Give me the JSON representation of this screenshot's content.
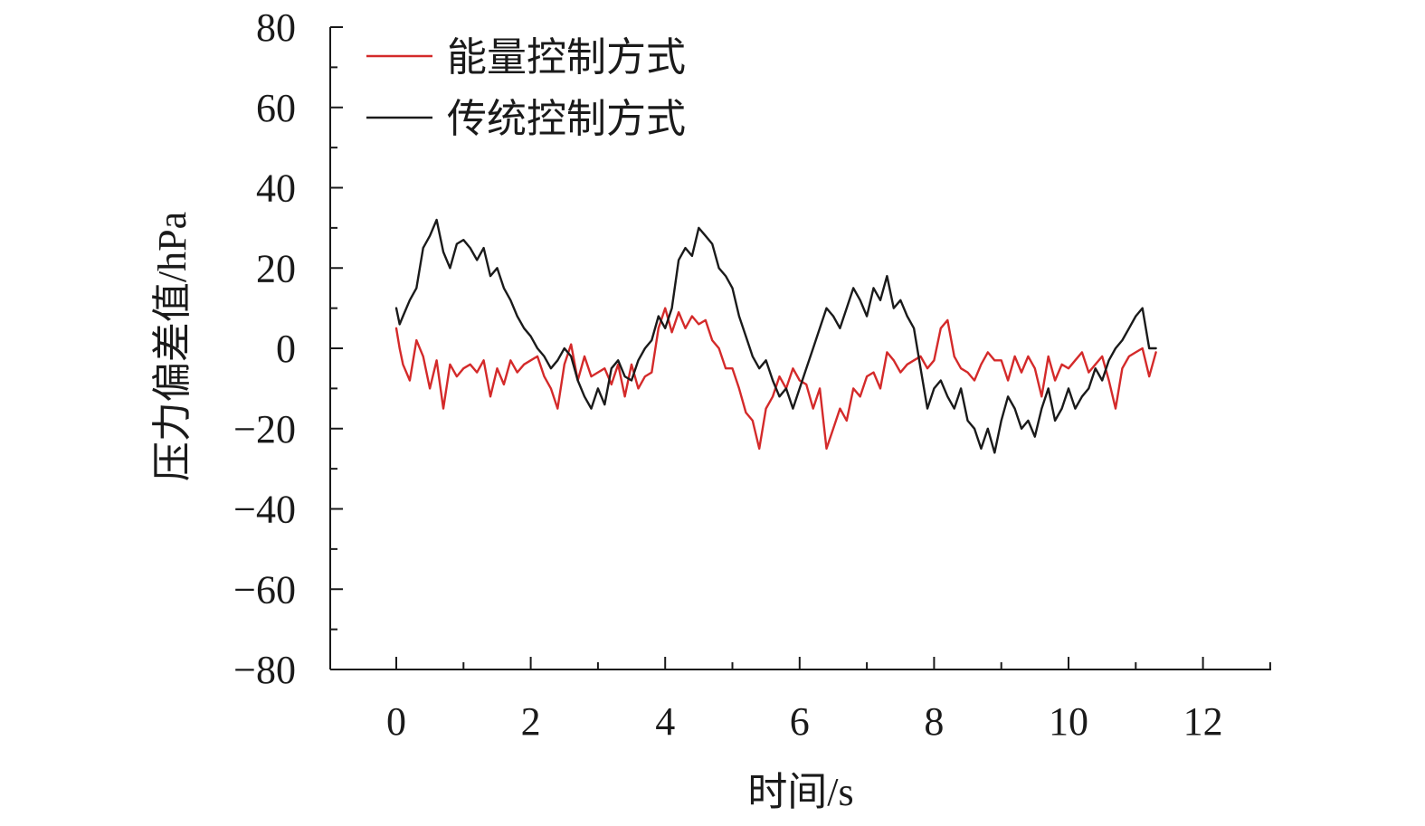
{
  "chart_data": {
    "type": "line",
    "title": "",
    "xlabel": "时间/s",
    "ylabel": "压力偏差值/hPa",
    "xlim": [
      0,
      13
    ],
    "ylim": [
      -80,
      80
    ],
    "x_ticks": [
      0,
      2,
      4,
      6,
      8,
      10,
      12
    ],
    "y_ticks": [
      80,
      60,
      40,
      20,
      0,
      -20,
      -40,
      -60,
      -80
    ],
    "x_tick_labels": [
      "0",
      "2",
      "4",
      "6",
      "8",
      "10",
      "12"
    ],
    "y_tick_labels": [
      "80",
      "60",
      "40",
      "20",
      "0",
      "−20",
      "−40",
      "−60",
      "−80"
    ],
    "grid": false,
    "legend_position": "top-left",
    "series": [
      {
        "name": "能量控制方式",
        "color": "#d42a2a",
        "x": [
          0,
          0.05,
          0.1,
          0.2,
          0.3,
          0.4,
          0.5,
          0.6,
          0.7,
          0.8,
          0.9,
          1.0,
          1.1,
          1.2,
          1.3,
          1.4,
          1.5,
          1.6,
          1.7,
          1.8,
          1.9,
          2.0,
          2.1,
          2.2,
          2.3,
          2.4,
          2.5,
          2.6,
          2.7,
          2.8,
          2.9,
          3.0,
          3.1,
          3.2,
          3.3,
          3.4,
          3.5,
          3.6,
          3.7,
          3.8,
          3.9,
          4.0,
          4.1,
          4.2,
          4.3,
          4.4,
          4.5,
          4.6,
          4.7,
          4.8,
          4.9,
          5.0,
          5.1,
          5.2,
          5.3,
          5.4,
          5.5,
          5.6,
          5.7,
          5.8,
          5.9,
          6.0,
          6.1,
          6.2,
          6.3,
          6.4,
          6.5,
          6.6,
          6.7,
          6.8,
          6.9,
          7.0,
          7.1,
          7.2,
          7.3,
          7.4,
          7.5,
          7.6,
          7.7,
          7.8,
          7.9,
          8.0,
          8.1,
          8.2,
          8.3,
          8.4,
          8.5,
          8.6,
          8.7,
          8.8,
          8.9,
          9.0,
          9.1,
          9.2,
          9.3,
          9.4,
          9.5,
          9.6,
          9.7,
          9.8,
          9.9,
          10.0,
          10.1,
          10.2,
          10.3,
          10.4,
          10.5,
          10.6,
          10.7,
          10.8,
          10.9,
          11.0,
          11.1,
          11.2,
          11.3
        ],
        "y": [
          5,
          0,
          -4,
          -8,
          2,
          -2,
          -10,
          -3,
          -15,
          -4,
          -7,
          -5,
          -4,
          -6,
          -3,
          -12,
          -5,
          -9,
          -3,
          -6,
          -4,
          -3,
          -2,
          -7,
          -10,
          -15,
          -4,
          1,
          -8,
          -2,
          -7,
          -6,
          -5,
          -9,
          -4,
          -12,
          -4,
          -10,
          -7,
          -6,
          5,
          10,
          4,
          9,
          5,
          8,
          6,
          7,
          2,
          0,
          -5,
          -5,
          -10,
          -16,
          -18,
          -25,
          -15,
          -12,
          -7,
          -10,
          -5,
          -8,
          -9,
          -15,
          -10,
          -25,
          -20,
          -15,
          -18,
          -10,
          -12,
          -7,
          -6,
          -10,
          -1,
          -3,
          -6,
          -4,
          -3,
          -2,
          -5,
          -3,
          5,
          7,
          -2,
          -5,
          -6,
          -8,
          -4,
          -1,
          -3,
          -3,
          -8,
          -2,
          -6,
          -2,
          -5,
          -12,
          -2,
          -8,
          -4,
          -5,
          -3,
          -1,
          -6,
          -4,
          -2,
          -8,
          -15,
          -5,
          -2,
          -1,
          0,
          -7,
          -1
        ]
      },
      {
        "name": "传统控制方式",
        "color": "#1a1a1a",
        "x": [
          0,
          0.05,
          0.1,
          0.2,
          0.3,
          0.4,
          0.5,
          0.6,
          0.7,
          0.8,
          0.9,
          1.0,
          1.1,
          1.2,
          1.3,
          1.4,
          1.5,
          1.6,
          1.7,
          1.8,
          1.9,
          2.0,
          2.1,
          2.2,
          2.3,
          2.4,
          2.5,
          2.6,
          2.7,
          2.8,
          2.9,
          3.0,
          3.1,
          3.2,
          3.3,
          3.4,
          3.5,
          3.6,
          3.7,
          3.8,
          3.9,
          4.0,
          4.1,
          4.2,
          4.3,
          4.4,
          4.5,
          4.6,
          4.7,
          4.8,
          4.9,
          5.0,
          5.1,
          5.2,
          5.3,
          5.4,
          5.5,
          5.6,
          5.7,
          5.8,
          5.9,
          6.0,
          6.1,
          6.2,
          6.3,
          6.4,
          6.5,
          6.6,
          6.7,
          6.8,
          6.9,
          7.0,
          7.1,
          7.2,
          7.3,
          7.4,
          7.5,
          7.6,
          7.7,
          7.8,
          7.9,
          8.0,
          8.1,
          8.2,
          8.3,
          8.4,
          8.5,
          8.6,
          8.7,
          8.8,
          8.9,
          9.0,
          9.1,
          9.2,
          9.3,
          9.4,
          9.5,
          9.6,
          9.7,
          9.8,
          9.9,
          10.0,
          10.1,
          10.2,
          10.3,
          10.4,
          10.5,
          10.6,
          10.7,
          10.8,
          10.9,
          11.0,
          11.1,
          11.2,
          11.3
        ],
        "y": [
          10,
          6,
          8,
          12,
          15,
          25,
          28,
          32,
          24,
          20,
          26,
          27,
          25,
          22,
          25,
          18,
          20,
          15,
          12,
          8,
          5,
          3,
          0,
          -2,
          -5,
          -3,
          0,
          -2,
          -8,
          -12,
          -15,
          -10,
          -14,
          -5,
          -3,
          -7,
          -8,
          -3,
          0,
          2,
          8,
          5,
          10,
          22,
          25,
          23,
          30,
          28,
          26,
          20,
          18,
          15,
          8,
          3,
          -2,
          -5,
          -3,
          -8,
          -12,
          -10,
          -15,
          -10,
          -5,
          0,
          5,
          10,
          8,
          5,
          10,
          15,
          12,
          8,
          15,
          12,
          18,
          10,
          12,
          8,
          5,
          -5,
          -15,
          -10,
          -8,
          -12,
          -15,
          -10,
          -18,
          -20,
          -25,
          -20,
          -26,
          -18,
          -12,
          -15,
          -20,
          -18,
          -22,
          -15,
          -10,
          -18,
          -15,
          -10,
          -15,
          -12,
          -10,
          -5,
          -8,
          -3,
          0,
          2,
          5,
          8,
          10,
          0,
          0
        ]
      }
    ]
  }
}
